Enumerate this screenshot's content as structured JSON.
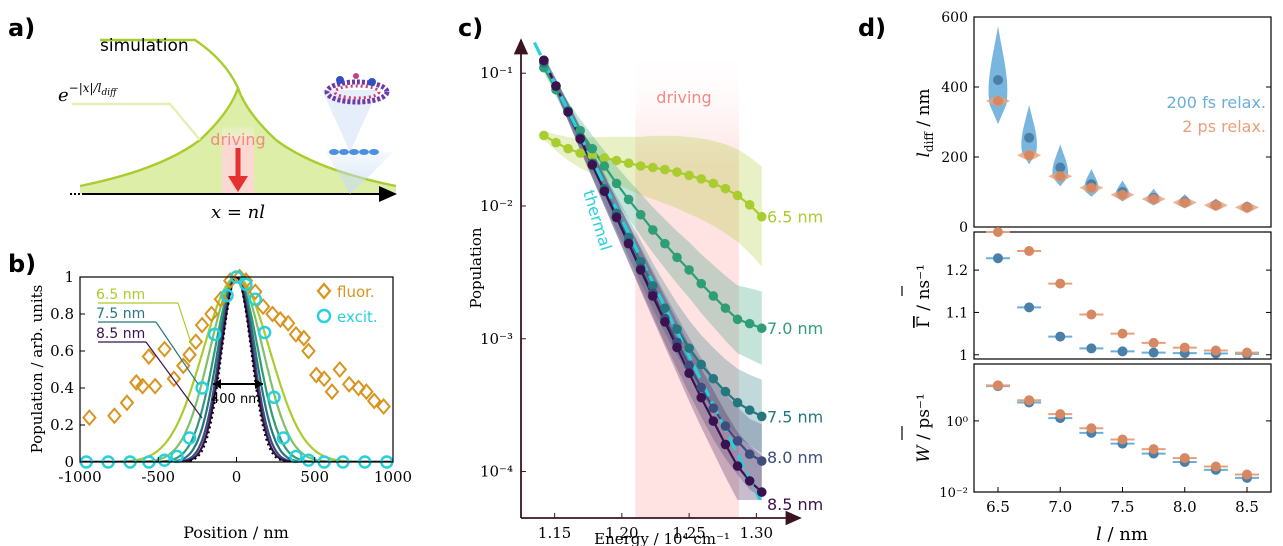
{
  "panels": {
    "a": "a)",
    "b": "b)",
    "c": "c)",
    "d": "d)"
  },
  "colors": {
    "s65": "#a9cc2e",
    "s70": "#2f9e76",
    "s75": "#24777f",
    "s80": "#3d4d7d",
    "s85": "#3b1250",
    "cyan": "#26d1dc",
    "orange": "#d8941e",
    "blue": "#6aaedc",
    "peach": "#e8a07a",
    "red": "#e53030",
    "pink": "#ffd6d6"
  },
  "panel_a": {
    "simulation_label": "simulation",
    "exp_label": "e",
    "exp_sup": "−|x|/l",
    "exp_sub": "diff",
    "driving_label": "driving",
    "axis_label": "x = nl"
  },
  "chart_data": [
    {
      "id": "b",
      "type": "line",
      "xlabel": "Position / nm",
      "ylabel": "Population / arb. units",
      "xlim": [
        -1000,
        1000
      ],
      "ylim": [
        0,
        1
      ],
      "xticks": [
        "-1000",
        "-500",
        "0",
        "500",
        "1000"
      ],
      "yticks": [
        "0",
        "0.2",
        "0.4",
        "0.6",
        "0.8",
        "1"
      ],
      "annotation": "400 nm",
      "series_labels": [
        "6.5 nm",
        "7.5 nm",
        "8.5 nm"
      ],
      "legend": [
        "fluor.",
        "excit."
      ],
      "curve_widths_nm": [
        400,
        320,
        260,
        225,
        200,
        185
      ],
      "fluor": [
        [
          -940,
          0.24
        ],
        [
          -780,
          0.25
        ],
        [
          -700,
          0.32
        ],
        [
          -640,
          0.43
        ],
        [
          -600,
          0.41
        ],
        [
          -560,
          0.57
        ],
        [
          -520,
          0.41
        ],
        [
          -460,
          0.61
        ],
        [
          -400,
          0.45
        ],
        [
          -340,
          0.52
        ],
        [
          -300,
          0.58
        ],
        [
          -260,
          0.65
        ],
        [
          -220,
          0.74
        ],
        [
          -160,
          0.8
        ],
        [
          -100,
          0.88
        ],
        [
          -40,
          0.98
        ],
        [
          20,
          1.0
        ],
        [
          60,
          0.98
        ],
        [
          120,
          0.92
        ],
        [
          170,
          0.84
        ],
        [
          230,
          0.8
        ],
        [
          280,
          0.77
        ],
        [
          330,
          0.75
        ],
        [
          380,
          0.69
        ],
        [
          430,
          0.67
        ],
        [
          460,
          0.6
        ],
        [
          510,
          0.47
        ],
        [
          560,
          0.45
        ],
        [
          610,
          0.38
        ],
        [
          660,
          0.5
        ],
        [
          720,
          0.42
        ],
        [
          780,
          0.4
        ],
        [
          830,
          0.38
        ],
        [
          880,
          0.33
        ],
        [
          940,
          0.3
        ]
      ],
      "excit": [
        [
          -960,
          0
        ],
        [
          -820,
          0
        ],
        [
          -680,
          0
        ],
        [
          -560,
          0
        ],
        [
          -460,
          0.01
        ],
        [
          -380,
          0.03
        ],
        [
          -300,
          0.13
        ],
        [
          -220,
          0.4
        ],
        [
          -140,
          0.69
        ],
        [
          -60,
          0.9
        ],
        [
          0,
          1.0
        ],
        [
          60,
          0.96
        ],
        [
          120,
          0.88
        ],
        [
          180,
          0.7
        ],
        [
          240,
          0.35
        ],
        [
          300,
          0.13
        ],
        [
          380,
          0.03
        ],
        [
          460,
          0.01
        ],
        [
          560,
          0
        ],
        [
          680,
          0
        ],
        [
          820,
          0
        ],
        [
          960,
          0
        ]
      ]
    },
    {
      "id": "c",
      "type": "line",
      "xlabel": "Energy / 10⁴ cm⁻¹",
      "ylabel": "Population",
      "xlim": [
        1.125,
        1.325
      ],
      "ylim_log10": [
        -4.35,
        -0.75
      ],
      "xticks": [
        "1.15",
        "1.20",
        "1.25",
        "1.30"
      ],
      "yticks": [
        "10⁻¹",
        "10⁻²",
        "10⁻³",
        "10⁻⁴"
      ],
      "driving_band": [
        1.21,
        1.287
      ],
      "driving_label": "driving",
      "thermal_label": "thermal",
      "x": [
        1.142,
        1.151,
        1.16,
        1.169,
        1.178,
        1.187,
        1.196,
        1.205,
        1.214,
        1.223,
        1.232,
        1.241,
        1.25,
        1.259,
        1.268,
        1.277,
        1.286,
        1.295,
        1.304
      ],
      "series": [
        {
          "name": "6.5 nm",
          "values": [
            0.034,
            0.03,
            0.027,
            0.025,
            0.024,
            0.023,
            0.022,
            0.021,
            0.02,
            0.0195,
            0.0188,
            0.018,
            0.017,
            0.016,
            0.0148,
            0.0135,
            0.012,
            0.0102,
            0.0083
          ]
        },
        {
          "name": "7.0 nm",
          "values": [
            0.11,
            0.075,
            0.052,
            0.037,
            0.027,
            0.02,
            0.0148,
            0.0112,
            0.0086,
            0.0066,
            0.0052,
            0.0041,
            0.0033,
            0.0026,
            0.0021,
            0.0017,
            0.0014,
            0.0013,
            0.0012
          ]
        },
        {
          "name": "7.5 nm",
          "values": [
            0.12,
            0.08,
            0.052,
            0.033,
            0.021,
            0.0135,
            0.0088,
            0.0058,
            0.0038,
            0.0025,
            0.0017,
            0.00118,
            0.00085,
            0.00064,
            0.0005,
            0.0004,
            0.00033,
            0.00029,
            0.00026
          ]
        },
        {
          "name": "8.0 nm",
          "values": [
            0.125,
            0.08,
            0.051,
            0.032,
            0.0205,
            0.013,
            0.0083,
            0.0053,
            0.0034,
            0.0022,
            0.00142,
            0.00094,
            0.00063,
            0.00043,
            0.0003,
            0.00022,
            0.00017,
            0.000135,
            0.00012
          ]
        },
        {
          "name": "8.5 nm",
          "values": [
            0.125,
            0.08,
            0.051,
            0.032,
            0.0204,
            0.0129,
            0.0082,
            0.0052,
            0.0033,
            0.0021,
            0.00134,
            0.00086,
            0.00055,
            0.00036,
            0.00024,
            0.00016,
            0.00011,
            8.5e-05,
            7e-05
          ]
        }
      ]
    },
    {
      "id": "d-top",
      "type": "scatter",
      "ylabel_main": "l",
      "ylabel_sub": "diff",
      "ylabel_unit": "/ nm",
      "ylim": [
        0,
        600
      ],
      "yticks": [
        "0",
        "200",
        "400",
        "600"
      ],
      "legend": [
        "200 fs relax.",
        "2 ps relax."
      ],
      "x": [
        6.5,
        6.75,
        7.0,
        7.25,
        7.5,
        7.75,
        8.0,
        8.25,
        8.5
      ],
      "series": [
        {
          "name": "200 fs relax.",
          "values": [
            420,
            255,
            170,
            122,
            100,
            83,
            72,
            63,
            57
          ]
        },
        {
          "name": "2 ps relax.",
          "values": [
            360,
            205,
            145,
            112,
            92,
            80,
            70,
            62,
            56
          ]
        }
      ]
    },
    {
      "id": "d-mid",
      "type": "scatter",
      "ylabel_main": "Γ",
      "ylabel_unit": "/ ns⁻¹",
      "ylim": [
        0.99,
        1.29
      ],
      "yticks": [
        "1",
        "1.1",
        "1.2"
      ],
      "x": [
        6.5,
        6.75,
        7.0,
        7.25,
        7.5,
        7.75,
        8.0,
        8.25,
        8.5
      ],
      "series": [
        {
          "name": "200 fs relax.",
          "values": [
            1.228,
            1.112,
            1.043,
            1.015,
            1.008,
            1.005,
            1.004,
            1.003,
            1.002
          ]
        },
        {
          "name": "2 ps relax.",
          "values": [
            1.29,
            1.245,
            1.168,
            1.095,
            1.05,
            1.028,
            1.017,
            1.01,
            1.005
          ]
        }
      ]
    },
    {
      "id": "d-bot",
      "type": "scatter",
      "ylabel_main": "W",
      "ylabel_unit": "/ ps⁻¹",
      "xlabel_main": "l",
      "xlabel_unit": "/ nm",
      "ylim_log10": [
        -2,
        1.6
      ],
      "yticks": [
        "10⁰",
        "10⁻²"
      ],
      "xticks": [
        "6.5",
        "7.0",
        "7.5",
        "8.0",
        "8.5"
      ],
      "x": [
        6.5,
        6.75,
        7.0,
        7.25,
        7.5,
        7.75,
        8.0,
        8.25,
        8.5
      ],
      "series": [
        {
          "name": "200 fs relax.",
          "values": [
            9.5,
            3.3,
            1.2,
            0.46,
            0.23,
            0.12,
            0.07,
            0.042,
            0.025
          ]
        },
        {
          "name": "2 ps relax.",
          "values": [
            10.0,
            3.8,
            1.55,
            0.62,
            0.3,
            0.16,
            0.09,
            0.052,
            0.031
          ]
        }
      ]
    }
  ]
}
